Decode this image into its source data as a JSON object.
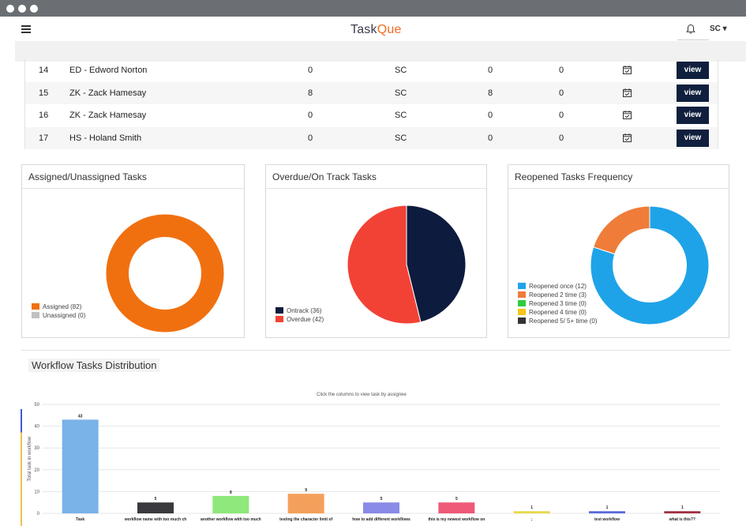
{
  "window": {
    "dots": [
      "white",
      "white",
      "white"
    ]
  },
  "navbar": {
    "logo_prefix": "Task",
    "logo_suffix": "Que",
    "user": "SC ▾",
    "menu_icon": "hamburger-icon",
    "notification_icon": "bell-icon"
  },
  "table": {
    "rows": [
      {
        "num": "14",
        "name": "ED - Edword Norton",
        "a": "0",
        "b": "SC",
        "c": "0",
        "d": "0",
        "view": "view"
      },
      {
        "num": "15",
        "name": "ZK - Zack Hamesay",
        "a": "8",
        "b": "SC",
        "c": "8",
        "d": "0",
        "view": "view"
      },
      {
        "num": "16",
        "name": "ZK - Zack Hamesay",
        "a": "0",
        "b": "SC",
        "c": "0",
        "d": "0",
        "view": "view"
      },
      {
        "num": "17",
        "name": "HS - Holand Smith",
        "a": "0",
        "b": "SC",
        "c": "0",
        "d": "0",
        "view": "view"
      }
    ]
  },
  "panels": {
    "assigned": {
      "title": "Assigned/Unassigned Tasks",
      "legend": [
        {
          "label": "Assigned (82)",
          "color": "#f07010"
        },
        {
          "label": "Unassigned (0)",
          "color": "#c0c0c0"
        }
      ]
    },
    "overdue": {
      "title": "Overdue/On Track Tasks",
      "legend": [
        {
          "label": "Ontrack (36)",
          "color": "#0d1b3e"
        },
        {
          "label": "Overdue (42)",
          "color": "#f24236"
        }
      ]
    },
    "reopened": {
      "title": "Reopened Tasks Frequency",
      "legend": [
        {
          "label": "Reopened once (12)",
          "color": "#1fa3e8"
        },
        {
          "label": "Reopened 2 time (3)",
          "color": "#ef7c39"
        },
        {
          "label": "Reopened 3 time (0)",
          "color": "#2ecc40"
        },
        {
          "label": "Reopened 4 time (0)",
          "color": "#f5c518"
        },
        {
          "label": "Reopened 5/ 5+ time (0)",
          "color": "#333333"
        }
      ]
    }
  },
  "chart_data": [
    {
      "type": "pie",
      "donut": true,
      "labels": [
        "Assigned",
        "Unassigned"
      ],
      "values": [
        82,
        0
      ],
      "colors": [
        "#f07010",
        "#c0c0c0"
      ]
    },
    {
      "type": "pie",
      "donut": false,
      "labels": [
        "Ontrack",
        "Overdue"
      ],
      "values": [
        36,
        42
      ],
      "colors": [
        "#0d1b3e",
        "#f24236"
      ]
    },
    {
      "type": "pie",
      "donut": true,
      "labels": [
        "Reopened once",
        "Reopened 2 time",
        "Reopened 3 time",
        "Reopened 4 time",
        "Reopened 5/ 5+ time"
      ],
      "values": [
        12,
        3,
        0,
        0,
        0
      ],
      "colors": [
        "#1fa3e8",
        "#ef7c39",
        "#2ecc40",
        "#f5c518",
        "#333333"
      ]
    },
    {
      "type": "bar",
      "title": "Workflow Tasks Distribution",
      "subtitle": "Click the columns to view task by assignee",
      "ylabel": "Total task in workflow",
      "xlabel": "",
      "ylim": [
        0,
        50
      ],
      "yticks": [
        0,
        10,
        20,
        30,
        40,
        50
      ],
      "grid": true,
      "categories": [
        "Task",
        "workflow name with too much ch",
        "another workflow with too much",
        "testing the character limit of",
        "how to add different workflows",
        "this is my newest workflow on",
        ";",
        "test workflow",
        "what is this??"
      ],
      "values": [
        43,
        5,
        8,
        9,
        5,
        5,
        1,
        1,
        1
      ],
      "colors": [
        "#7ab3e8",
        "#3a3a3e",
        "#8fe87a",
        "#f5a05a",
        "#8a8ae8",
        "#ee5a78",
        "#e8d84a",
        "#5a6ad8",
        "#a03040"
      ]
    }
  ]
}
